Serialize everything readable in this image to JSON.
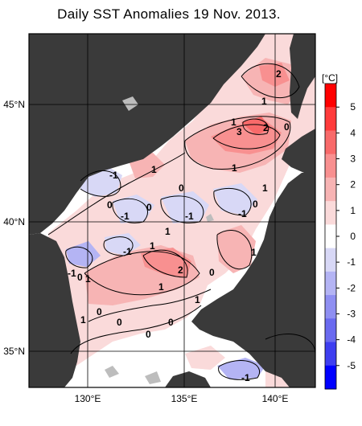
{
  "title": "Daily SST Anomalies 19 Nov. 2013.",
  "map": {
    "lat_labels": [
      "45°N",
      "40°N",
      "35°N"
    ],
    "lon_labels": [
      "130°E",
      "135°E",
      "140°E"
    ]
  },
  "colorbar": {
    "unit": "[°C]",
    "ticks": [
      "5",
      "4",
      "3",
      "2",
      "1",
      "0",
      "-1",
      "-2",
      "-3",
      "-4",
      "-5"
    ],
    "colors": [
      "#ff0000",
      "#ff3b3b",
      "#f86a6a",
      "#f89090",
      "#f7b4b4",
      "#fadada",
      "#ffffff",
      "#d8d8f6",
      "#b4b4f4",
      "#8f8ff2",
      "#6a6af0",
      "#3e3ef0",
      "#0000ff"
    ]
  },
  "contour_labels": [
    "2",
    "1",
    "1",
    "3",
    "2",
    "0",
    "1",
    "-1",
    "1",
    "0",
    "1",
    "0",
    "-1",
    "0",
    "-1",
    "-1",
    "0",
    "1",
    "1",
    "-1",
    "1",
    "2",
    "-1",
    "0",
    "1",
    "1",
    "1",
    "0",
    "0",
    "0",
    "1",
    "0",
    "0",
    "-1"
  ],
  "colors": {
    "land": "#3a3a3a",
    "ocean": "#ffffff",
    "grid": "#000000"
  }
}
